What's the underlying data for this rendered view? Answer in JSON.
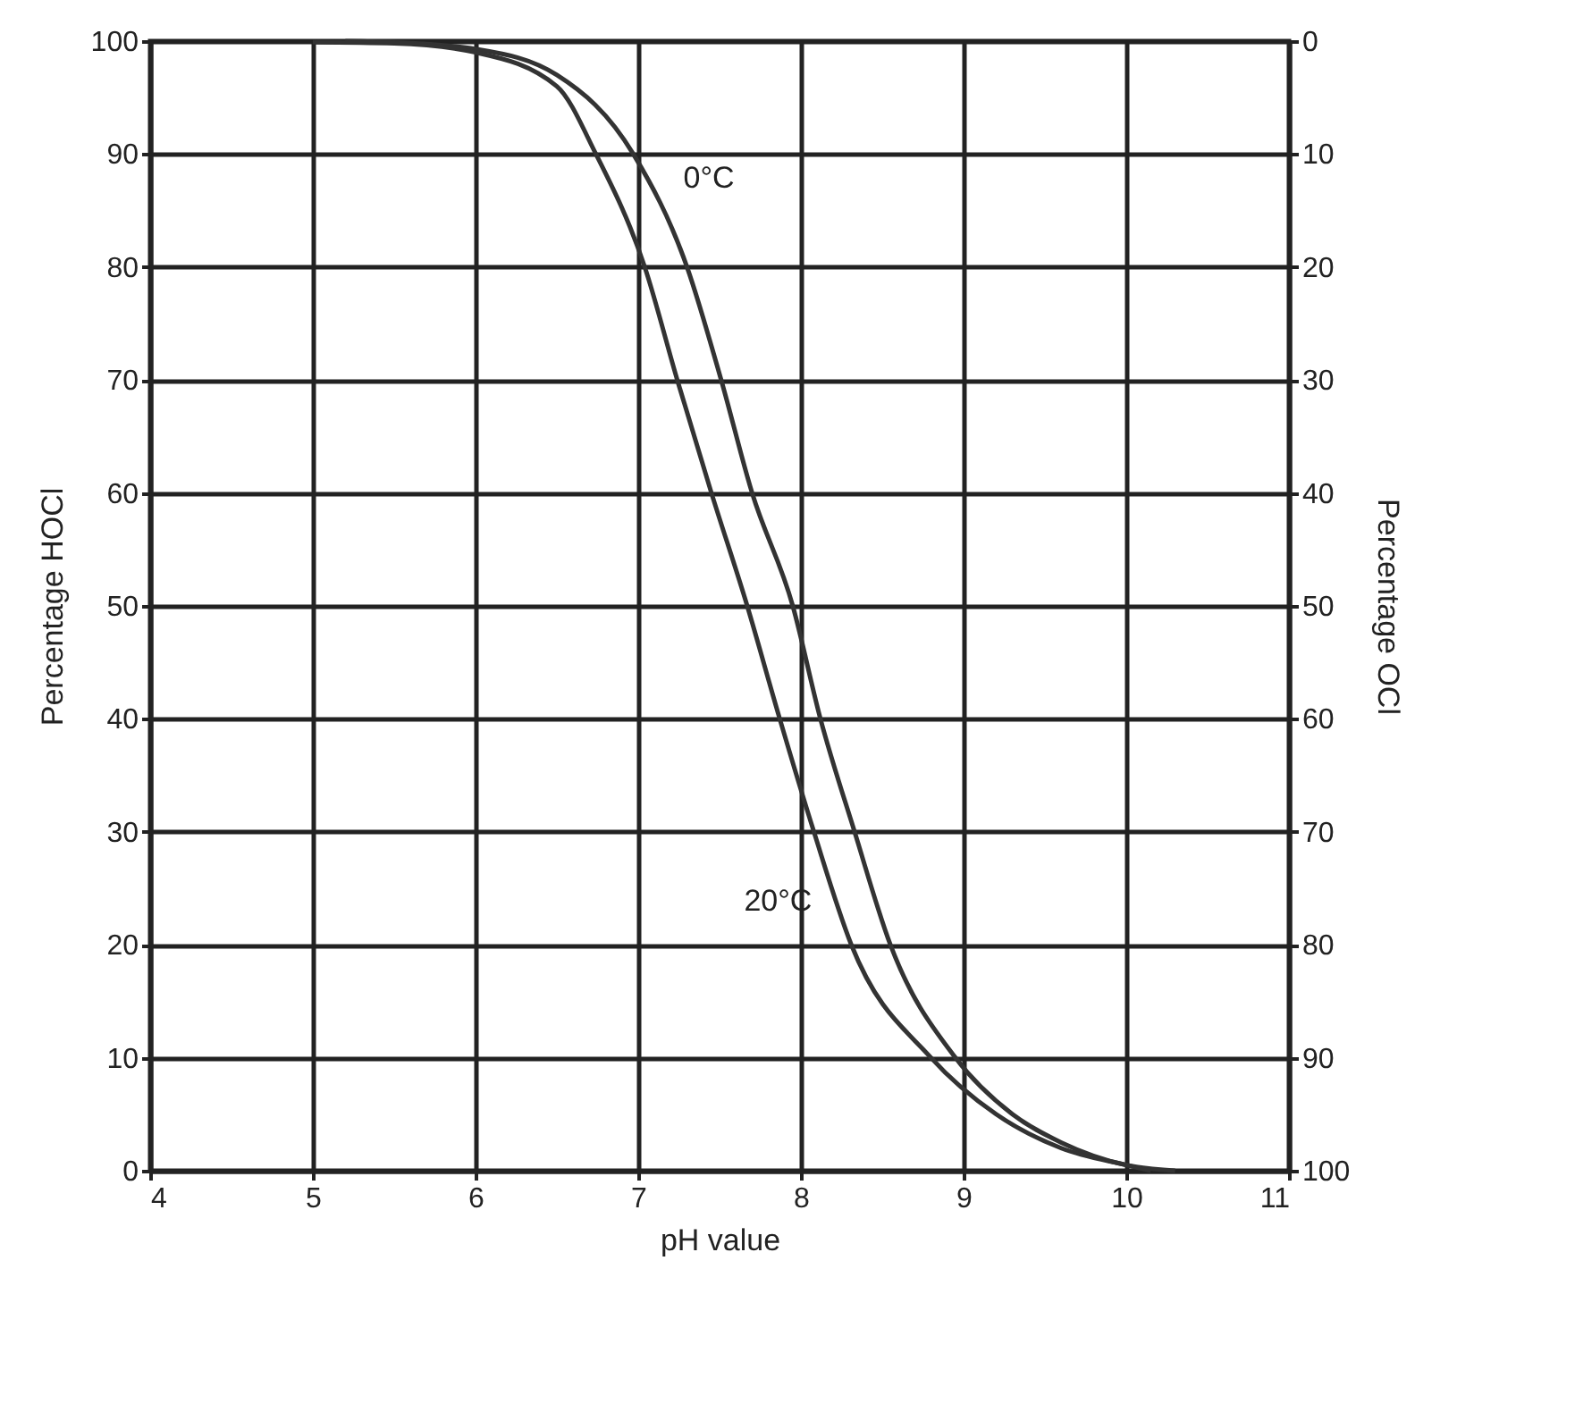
{
  "chart_data": {
    "type": "line",
    "xlabel": "pH value",
    "ylabel": "Percentage HOCl",
    "y2label": "Percentage OCl",
    "xlim": [
      4,
      11
    ],
    "xticks": [
      4,
      5,
      6,
      7,
      8,
      9,
      10,
      11
    ],
    "ylim": [
      0,
      100
    ],
    "yticks": [
      0,
      10,
      20,
      30,
      40,
      50,
      60,
      70,
      80,
      90,
      100
    ],
    "y2lim": [
      100,
      0
    ],
    "y2ticks": [
      0,
      10,
      20,
      30,
      40,
      50,
      60,
      70,
      80,
      90,
      100
    ],
    "grid": true,
    "line_style": "solid",
    "series": [
      {
        "name": "0°C",
        "color": "#333333",
        "x": [
          5.2,
          5.5,
          6,
          6.5,
          6.97,
          7.3,
          7.51,
          7.7,
          7.95,
          8.12,
          8.33,
          8.55,
          8.95,
          9.3,
          9.6,
          10,
          10.3
        ],
        "values": [
          100,
          99.9,
          99.3,
          97,
          90,
          80,
          70,
          60,
          50,
          40,
          30,
          20,
          10,
          5,
          2.5,
          0.5,
          0
        ]
      },
      {
        "name": "20°C",
        "color": "#333333",
        "x": [
          5,
          5.5,
          6,
          6.5,
          6.74,
          7.04,
          7.24,
          7.45,
          7.67,
          7.87,
          8.08,
          8.31,
          8.8,
          9.2,
          9.6,
          10,
          10.15
        ],
        "values": [
          99.9,
          99.8,
          99,
          96,
          90,
          80,
          70,
          60,
          50,
          40,
          30,
          20,
          10,
          5,
          2,
          0.5,
          0
        ]
      }
    ]
  }
}
